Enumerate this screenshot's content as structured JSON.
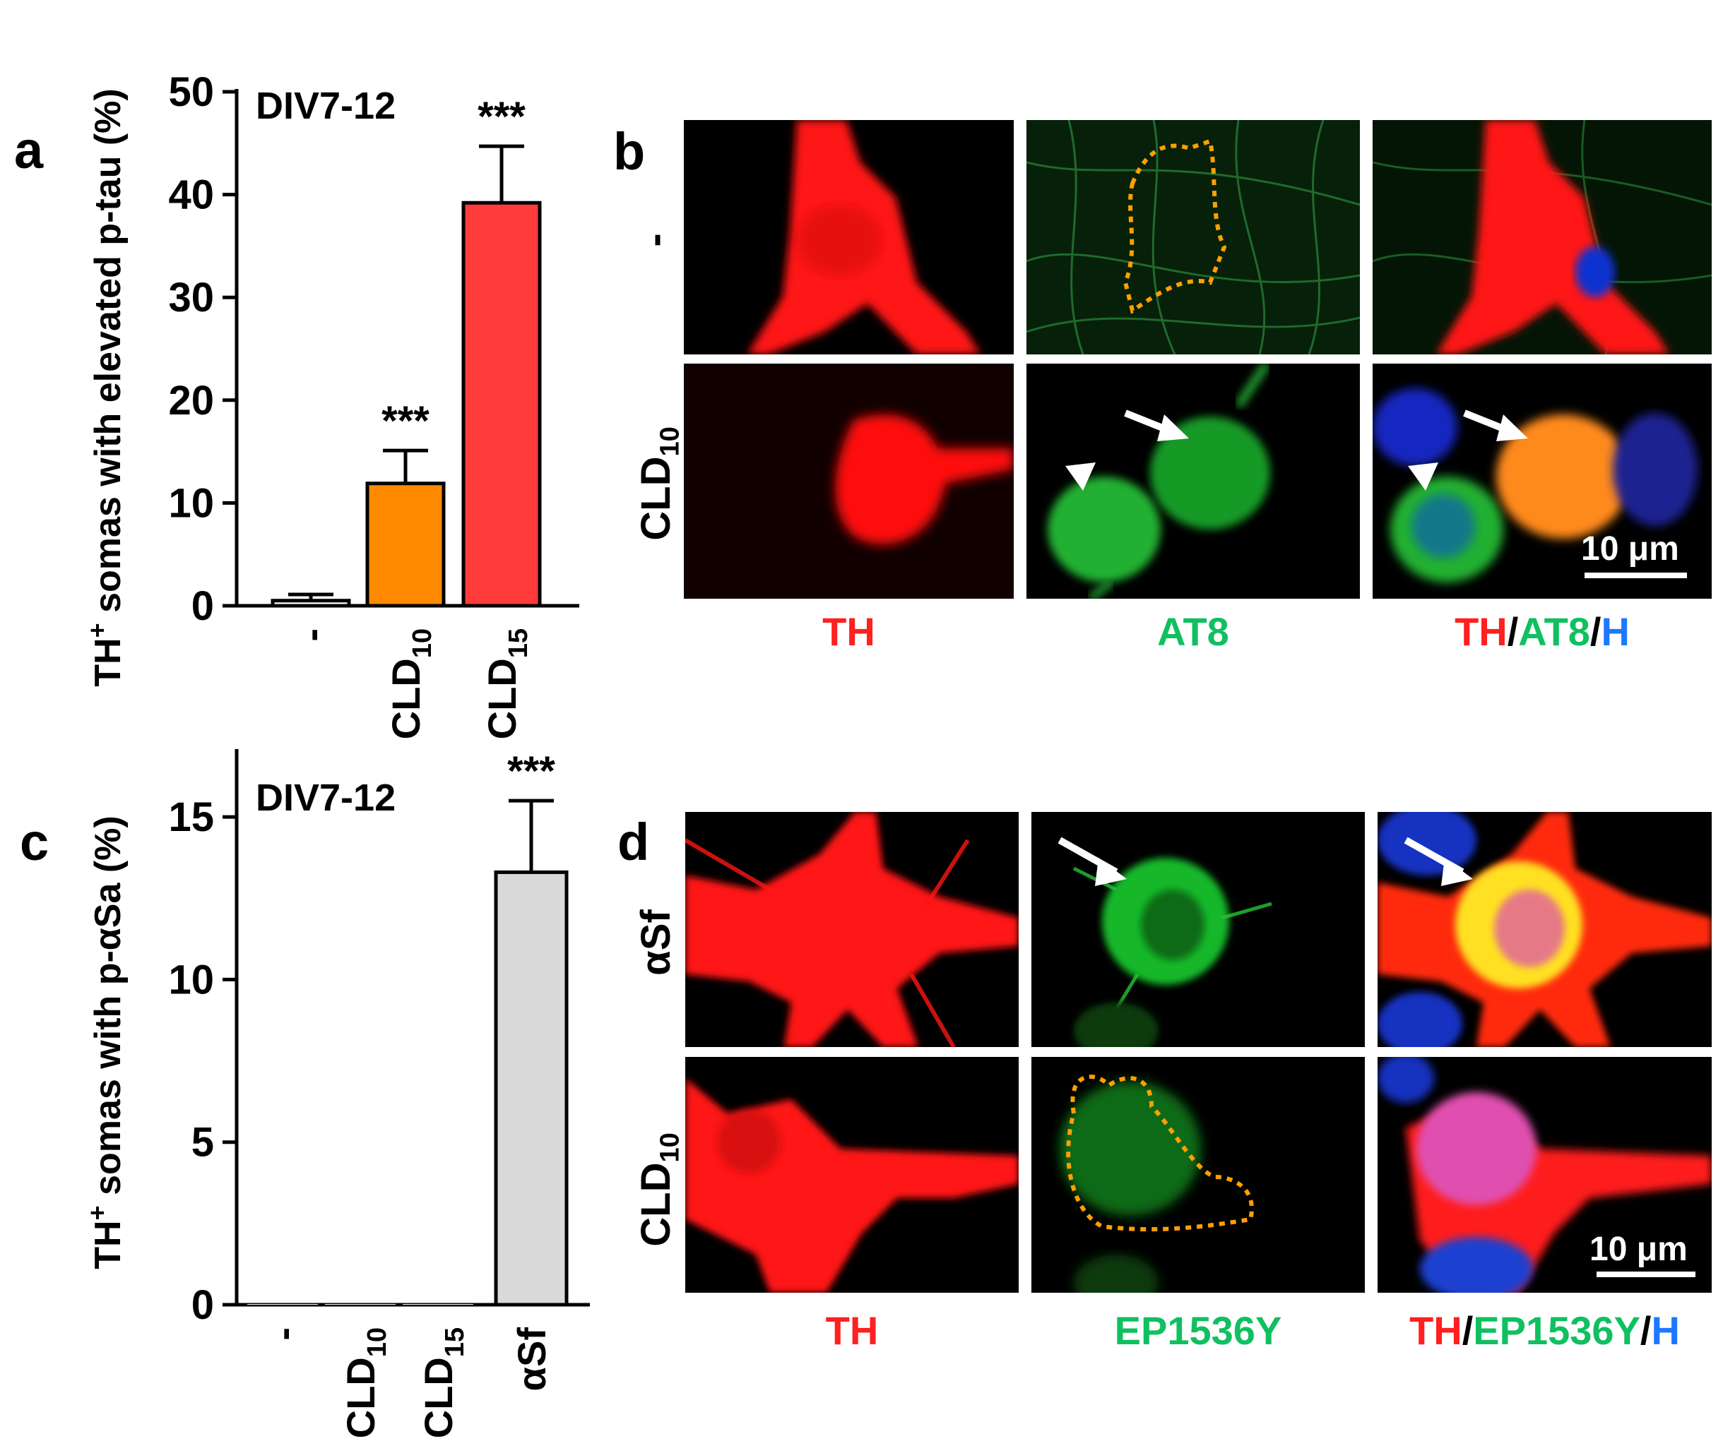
{
  "colors": {
    "bar_minus": "#ffffff",
    "bar_cld10": "#ff8a00",
    "bar_cld15": "#ff3b3b",
    "bar_asf": "#d9d9d9",
    "th_red": "#ff2020",
    "at8_green": "#10c060",
    "hoechst_blue": "#1e78ff",
    "outline_dots": "#ffa000"
  },
  "panels": {
    "a": "a",
    "b": "b",
    "c": "c",
    "d": "d"
  },
  "chart_data": [
    {
      "type": "bar",
      "panel": "a",
      "annotation": "DIV7-12",
      "ylabel": "TH+ somas with elevated p-tau (%)",
      "ylabel_main": "TH",
      "ylabel_sup": "+",
      "ylabel_rest": " somas with elevated p-tau (%)",
      "ylim": [
        0,
        50
      ],
      "yticks": [
        0,
        10,
        20,
        30,
        40,
        50
      ],
      "categories": [
        "-",
        "CLD10",
        "CLD15"
      ],
      "category_labels": [
        {
          "main": "-",
          "sub": ""
        },
        {
          "main": "CLD",
          "sub": "10"
        },
        {
          "main": "CLD",
          "sub": "15"
        }
      ],
      "values": [
        0.5,
        11.9,
        39.2
      ],
      "errors": [
        0.6,
        3.2,
        5.5
      ],
      "significance": [
        "",
        "***",
        "***"
      ],
      "bar_colors": [
        "#ffffff",
        "#ff8a00",
        "#ff3b3b"
      ]
    },
    {
      "type": "bar",
      "panel": "c",
      "annotation": "DIV7-12",
      "ylabel": "TH+ somas with p-αSa (%)",
      "ylabel_main": "TH",
      "ylabel_sup": "+",
      "ylabel_rest": " somas with p-αSa (%)",
      "ylim": [
        0,
        17
      ],
      "yticks": [
        0,
        5,
        10,
        15
      ],
      "categories": [
        "-",
        "CLD10",
        "CLD15",
        "αSf"
      ],
      "category_labels": [
        {
          "main": "-",
          "sub": ""
        },
        {
          "main": "CLD",
          "sub": "10"
        },
        {
          "main": "CLD",
          "sub": "15"
        },
        {
          "main": "αSf",
          "sub": ""
        }
      ],
      "values": [
        0,
        0,
        0,
        13.3
      ],
      "errors": [
        0,
        0,
        0,
        2.2
      ],
      "significance": [
        "",
        "",
        "",
        "***"
      ],
      "bar_colors": [
        "#ffffff",
        "#ffffff",
        "#ffffff",
        "#d9d9d9"
      ]
    }
  ],
  "panel_b": {
    "row_labels": [
      {
        "main": "-",
        "sub": ""
      },
      {
        "main": "CLD",
        "sub": "10"
      }
    ],
    "captions": {
      "col1": "TH",
      "col2": "AT8",
      "col3_a": "TH",
      "col3_b": "AT8",
      "col3_c": "H",
      "sep": "/"
    },
    "scale_bar": "10 μm"
  },
  "panel_d": {
    "row_labels": [
      {
        "main": "αSf",
        "sub": ""
      },
      {
        "main": "CLD",
        "sub": "10"
      }
    ],
    "captions": {
      "col1": "TH",
      "col2": "EP1536Y",
      "col3_a": "TH",
      "col3_b": "EP1536Y",
      "col3_c": "H",
      "sep": "/"
    },
    "scale_bar": "10 μm"
  }
}
